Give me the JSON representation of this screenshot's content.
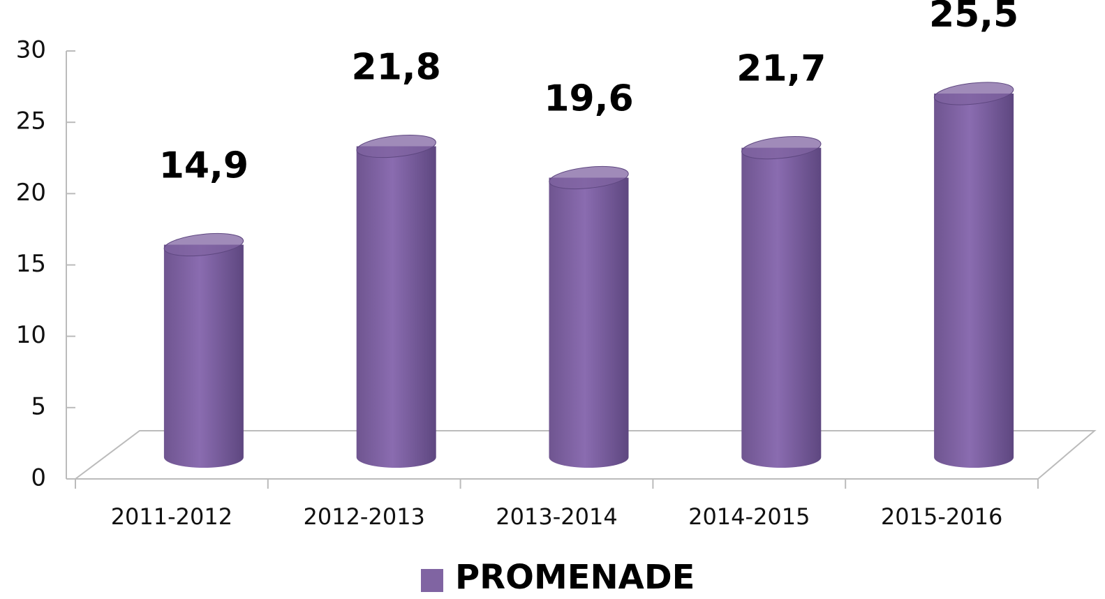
{
  "chart_data": {
    "type": "bar",
    "categories": [
      "2011-2012",
      "2012-2013",
      "2013-2014",
      "2014-2015",
      "2015-2016"
    ],
    "series": [
      {
        "name": "PROMENADE",
        "color": "#8064a2",
        "values": [
          14.9,
          21.8,
          19.6,
          21.7,
          25.5
        ],
        "value_labels": [
          "14,9",
          "21,8",
          "19,6",
          "21,7",
          "25,5"
        ]
      }
    ],
    "ylim": [
      0,
      30
    ],
    "yticks": [
      0,
      5,
      10,
      15,
      20,
      25,
      30
    ],
    "legend": "bottom"
  }
}
